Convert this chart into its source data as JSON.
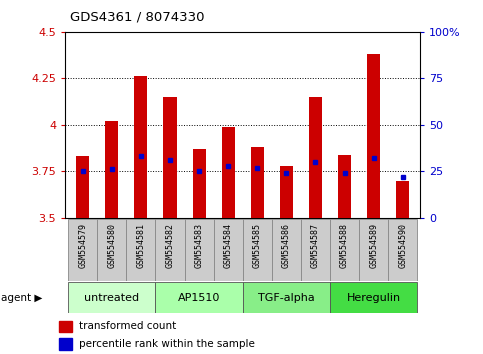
{
  "title": "GDS4361 / 8074330",
  "samples": [
    "GSM554579",
    "GSM554580",
    "GSM554581",
    "GSM554582",
    "GSM554583",
    "GSM554584",
    "GSM554585",
    "GSM554586",
    "GSM554587",
    "GSM554588",
    "GSM554589",
    "GSM554590"
  ],
  "transformed_counts": [
    3.83,
    4.02,
    4.26,
    4.15,
    3.87,
    3.99,
    3.88,
    3.78,
    4.15,
    3.84,
    4.38,
    3.7
  ],
  "percentile_ranks": [
    25,
    26,
    33,
    31,
    25,
    28,
    27,
    24,
    30,
    24,
    32,
    22
  ],
  "ylim_left": [
    3.5,
    4.5
  ],
  "ylim_right": [
    0,
    100
  ],
  "yticks_left": [
    3.5,
    3.75,
    4.0,
    4.25,
    4.5
  ],
  "yticks_right": [
    0,
    25,
    50,
    75,
    100
  ],
  "ytick_labels_left": [
    "3.5",
    "3.75",
    "4",
    "4.25",
    "4.5"
  ],
  "ytick_labels_right": [
    "0",
    "25",
    "50",
    "75",
    "100%"
  ],
  "bar_color": "#CC0000",
  "dot_color": "#0000CC",
  "bar_bottom": 3.5,
  "agent_groups": [
    {
      "label": "untreated",
      "start": 0,
      "end": 3,
      "color": "#CCFFCC"
    },
    {
      "label": "AP1510",
      "start": 3,
      "end": 6,
      "color": "#AAFFAA"
    },
    {
      "label": "TGF-alpha",
      "start": 6,
      "end": 9,
      "color": "#88EE88"
    },
    {
      "label": "Heregulin",
      "start": 9,
      "end": 12,
      "color": "#44DD44"
    }
  ],
  "legend_labels": [
    "transformed count",
    "percentile rank within the sample"
  ],
  "legend_colors": [
    "#CC0000",
    "#0000CC"
  ],
  "grid_color": "black",
  "background_color": "#ffffff",
  "tick_color_left": "#CC0000",
  "tick_color_right": "#0000CC",
  "bar_width": 0.45,
  "sample_bg": "#CCCCCC",
  "sample_border": "#888888"
}
